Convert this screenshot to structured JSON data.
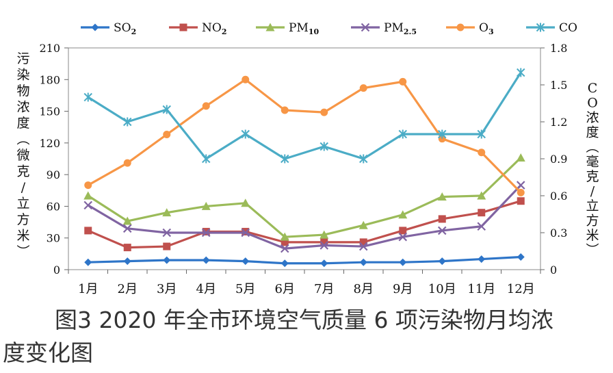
{
  "chart_data": {
    "type": "line",
    "categories": [
      "1月",
      "2月",
      "3月",
      "4月",
      "5月",
      "6月",
      "7月",
      "8月",
      "9月",
      "10月",
      "11月",
      "12月"
    ],
    "y_left": {
      "label_chars": [
        "污",
        "染",
        "物",
        "浓",
        "度",
        "︵",
        "微",
        "克",
        "/",
        "立",
        "方",
        "米",
        "︶"
      ],
      "ticks": [
        0,
        30,
        60,
        90,
        120,
        150,
        180,
        210
      ],
      "ylim": [
        0,
        210
      ]
    },
    "y_right": {
      "label_chars": [
        "C",
        "O",
        "浓",
        "度",
        "︵",
        "毫",
        "克",
        "/",
        "立",
        "方",
        "米",
        "︶"
      ],
      "ticks": [
        "0",
        "0.3",
        "0.6",
        "0.9",
        "1.2",
        "1.5",
        "1.8"
      ],
      "ylim": [
        0,
        1.8
      ]
    },
    "series": [
      {
        "name": "SO",
        "sub": "2",
        "color": "#2e75c8",
        "marker": "diamond",
        "axis": "left",
        "values": [
          7,
          8,
          9,
          9,
          8,
          6,
          6,
          7,
          7,
          8,
          10,
          12
        ]
      },
      {
        "name": "NO",
        "sub": "2",
        "color": "#c0504d",
        "marker": "square",
        "axis": "left",
        "values": [
          37,
          21,
          22,
          36,
          36,
          26,
          26,
          26,
          37,
          48,
          54,
          65
        ]
      },
      {
        "name": "PM",
        "sub": "10",
        "color": "#9bbb59",
        "marker": "triangle",
        "axis": "left",
        "values": [
          70,
          46,
          54,
          60,
          63,
          31,
          33,
          42,
          52,
          69,
          70,
          106
        ]
      },
      {
        "name": "PM",
        "sub": "2.5",
        "color": "#8064a2",
        "marker": "x",
        "axis": "left",
        "values": [
          61,
          39,
          35,
          35,
          35,
          20,
          23,
          22,
          31,
          37,
          41,
          80
        ]
      },
      {
        "name": "O",
        "sub": "3",
        "color": "#f79646",
        "marker": "circle",
        "axis": "left",
        "values": [
          80,
          101,
          128,
          155,
          180,
          151,
          149,
          172,
          178,
          124,
          111,
          73
        ]
      },
      {
        "name": "CO",
        "sub": "",
        "color": "#4bacc6",
        "marker": "star",
        "axis": "right",
        "values": [
          1.4,
          1.2,
          1.3,
          0.9,
          1.1,
          0.9,
          1.0,
          0.9,
          1.1,
          1.1,
          1.1,
          1.6
        ]
      }
    ]
  },
  "caption": {
    "line1": "图3  2020 年全市环境空气质量 6 项污染物月均浓",
    "line2": "度变化图"
  }
}
